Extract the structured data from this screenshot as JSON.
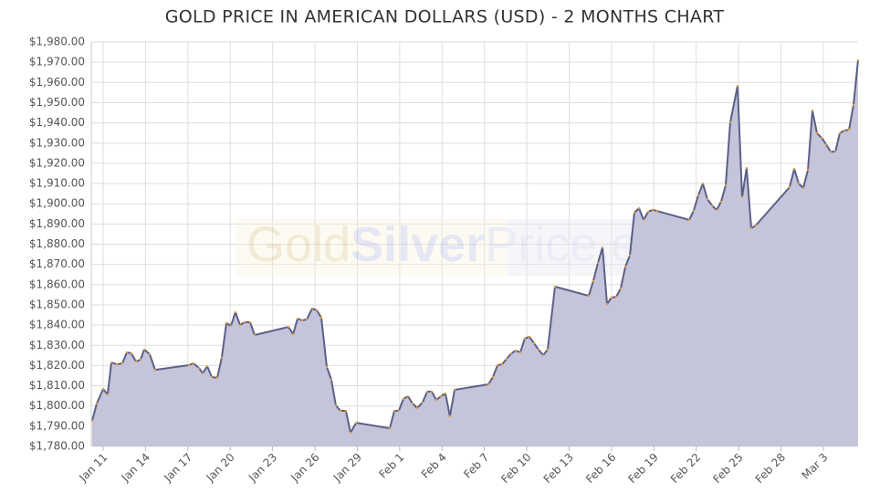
{
  "chart_data": {
    "type": "area",
    "title": "GOLD PRICE IN AMERICAN DOLLARS (USD) - 2 MONTHS CHART",
    "watermark": [
      "Gold",
      "Silver",
      "Price.eu"
    ],
    "line_color": "#5d6087",
    "fill_color": "#c4c4da",
    "marker_color": "#f0a030",
    "grid": true,
    "xlim": [
      10.16,
      64.46
    ],
    "ylim": [
      1780,
      1980
    ],
    "xticks": [
      {
        "value": 11,
        "label": "Jan 11"
      },
      {
        "value": 14,
        "label": "Jan 14"
      },
      {
        "value": 17,
        "label": "Jan 17"
      },
      {
        "value": 20,
        "label": "Jan 20"
      },
      {
        "value": 23,
        "label": "Jan 23"
      },
      {
        "value": 26,
        "label": "Jan 26"
      },
      {
        "value": 29,
        "label": "Jan 29"
      },
      {
        "value": 32,
        "label": "Feb 1"
      },
      {
        "value": 35,
        "label": "Feb 4"
      },
      {
        "value": 38,
        "label": "Feb 7"
      },
      {
        "value": 41,
        "label": "Feb 10"
      },
      {
        "value": 44,
        "label": "Feb 13"
      },
      {
        "value": 47,
        "label": "Feb 16"
      },
      {
        "value": 50,
        "label": "Feb 19"
      },
      {
        "value": 53,
        "label": "Feb 22"
      },
      {
        "value": 56,
        "label": "Feb 25"
      },
      {
        "value": 59,
        "label": "Feb 28"
      },
      {
        "value": 62,
        "label": "Mar 3"
      }
    ],
    "yticks": [
      {
        "value": 1780,
        "label": "$1,780.00"
      },
      {
        "value": 1790,
        "label": "$1,790.00"
      },
      {
        "value": 1800,
        "label": "$1,800.00"
      },
      {
        "value": 1810,
        "label": "$1,810.00"
      },
      {
        "value": 1820,
        "label": "$1,820.00"
      },
      {
        "value": 1830,
        "label": "$1,830.00"
      },
      {
        "value": 1840,
        "label": "$1,840.00"
      },
      {
        "value": 1850,
        "label": "$1,850.00"
      },
      {
        "value": 1860,
        "label": "$1,860.00"
      },
      {
        "value": 1870,
        "label": "$1,870.00"
      },
      {
        "value": 1880,
        "label": "$1,880.00"
      },
      {
        "value": 1890,
        "label": "$1,890.00"
      },
      {
        "value": 1900,
        "label": "$1,900.00"
      },
      {
        "value": 1910,
        "label": "$1,910.00"
      },
      {
        "value": 1920,
        "label": "$1,920.00"
      },
      {
        "value": 1930,
        "label": "$1,930.00"
      },
      {
        "value": 1940,
        "label": "$1,940.00"
      },
      {
        "value": 1950,
        "label": "$1,950.00"
      },
      {
        "value": 1960,
        "label": "$1,960.00"
      },
      {
        "value": 1970,
        "label": "$1,970.00"
      },
      {
        "value": 1980,
        "label": "$1,980.00"
      }
    ],
    "x": [
      10.22,
      10.55,
      11.0,
      11.32,
      11.58,
      11.97,
      12.36,
      12.68,
      13.0,
      13.33,
      13.65,
      13.91,
      14.3,
      14.68,
      17.08,
      17.4,
      17.79,
      18.05,
      18.37,
      18.69,
      19.08,
      19.4,
      19.73,
      20.05,
      20.37,
      20.7,
      21.02,
      21.41,
      21.73,
      24.12,
      24.45,
      24.77,
      25.09,
      25.42,
      25.8,
      26.13,
      26.45,
      26.84,
      27.16,
      27.48,
      27.81,
      28.19,
      28.52,
      28.91,
      31.3,
      31.62,
      31.94,
      32.27,
      32.59,
      32.91,
      33.24,
      33.62,
      33.95,
      34.27,
      34.59,
      34.92,
      35.24,
      35.56,
      35.89,
      38.28,
      38.6,
      38.93,
      39.25,
      39.57,
      39.9,
      40.22,
      40.54,
      40.86,
      41.19,
      41.51,
      41.83,
      42.16,
      42.48,
      43.0,
      45.39,
      45.71,
      46.04,
      46.36,
      46.68,
      47.0,
      47.33,
      47.65,
      47.98,
      48.3,
      48.62,
      48.95,
      49.27,
      49.59,
      49.92,
      50.24,
      52.5,
      52.82,
      53.15,
      53.47,
      53.79,
      54.12,
      54.44,
      54.76,
      55.09,
      55.41,
      55.93,
      56.25,
      56.57,
      56.9,
      57.22,
      59.61,
      59.94,
      60.26,
      60.58,
      60.91,
      61.23,
      61.55,
      61.88,
      62.2,
      62.52,
      62.85,
      63.17,
      63.49,
      63.82,
      64.14,
      64.46
    ],
    "values": [
      1792.6,
      1801.2,
      1808.4,
      1805.7,
      1821.5,
      1820.6,
      1821.1,
      1826.5,
      1826,
      1822,
      1823,
      1827.9,
      1825.6,
      1817.9,
      1820.2,
      1821.1,
      1818.8,
      1816.1,
      1819.7,
      1814.3,
      1813.9,
      1823.8,
      1841,
      1839.6,
      1846.4,
      1840,
      1841.4,
      1841.4,
      1835.1,
      1839.1,
      1835.5,
      1843.2,
      1842.3,
      1842.8,
      1848.2,
      1847.3,
      1843.7,
      1819.3,
      1813,
      1800.3,
      1797.6,
      1797.6,
      1786.8,
      1791.7,
      1789,
      1797.6,
      1797.6,
      1803.5,
      1804.8,
      1801.2,
      1799,
      1801.7,
      1807.1,
      1807.1,
      1803,
      1804.8,
      1806.2,
      1794.9,
      1808,
      1810.7,
      1814.3,
      1820.2,
      1820.6,
      1823.3,
      1826,
      1827.4,
      1826.5,
      1833.3,
      1834.2,
      1831,
      1827.9,
      1825.1,
      1827.9,
      1859,
      1854.5,
      1861.7,
      1870.7,
      1878.4,
      1850.4,
      1853.6,
      1854,
      1858.1,
      1868.9,
      1874.4,
      1895.6,
      1897.8,
      1892,
      1896,
      1897,
      1896.4,
      1892,
      1896.5,
      1904.2,
      1910,
      1902.3,
      1899.2,
      1896.9,
      1901,
      1909.1,
      1940.3,
      1958.3,
      1903.3,
      1917.7,
      1887.9,
      1889.3,
      1908.2,
      1917.2,
      1910,
      1907.8,
      1916.8,
      1946.1,
      1934.9,
      1932.6,
      1929.4,
      1925.8,
      1925.8,
      1934.9,
      1936.2,
      1936.7,
      1948.8,
      1971
    ]
  }
}
